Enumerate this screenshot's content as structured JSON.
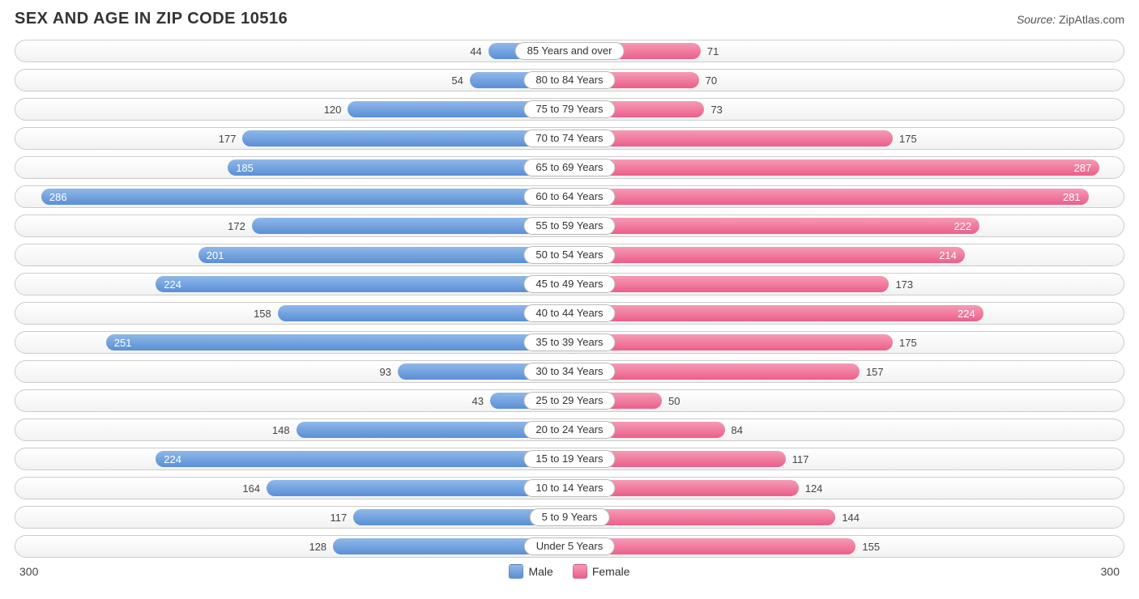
{
  "title": "SEX AND AGE IN ZIP CODE 10516",
  "source_label": "Source:",
  "source_value": "ZipAtlas.com",
  "axis_max": 300,
  "axis_left_label": "300",
  "axis_right_label": "300",
  "colors": {
    "male_light": "#8fb8e8",
    "male_dark": "#5a8fd6",
    "female_light": "#f59ab5",
    "female_dark": "#ec5e8a",
    "row_border": "#cccccc",
    "text": "#333333"
  },
  "legend": {
    "male": "Male",
    "female": "Female"
  },
  "value_label_inside_threshold": 180,
  "rows": [
    {
      "label": "85 Years and over",
      "male": 44,
      "female": 71
    },
    {
      "label": "80 to 84 Years",
      "male": 54,
      "female": 70
    },
    {
      "label": "75 to 79 Years",
      "male": 120,
      "female": 73
    },
    {
      "label": "70 to 74 Years",
      "male": 177,
      "female": 175
    },
    {
      "label": "65 to 69 Years",
      "male": 185,
      "female": 287
    },
    {
      "label": "60 to 64 Years",
      "male": 286,
      "female": 281
    },
    {
      "label": "55 to 59 Years",
      "male": 172,
      "female": 222
    },
    {
      "label": "50 to 54 Years",
      "male": 201,
      "female": 214
    },
    {
      "label": "45 to 49 Years",
      "male": 224,
      "female": 173
    },
    {
      "label": "40 to 44 Years",
      "male": 158,
      "female": 224
    },
    {
      "label": "35 to 39 Years",
      "male": 251,
      "female": 175
    },
    {
      "label": "30 to 34 Years",
      "male": 93,
      "female": 157
    },
    {
      "label": "25 to 29 Years",
      "male": 43,
      "female": 50
    },
    {
      "label": "20 to 24 Years",
      "male": 148,
      "female": 84
    },
    {
      "label": "15 to 19 Years",
      "male": 224,
      "female": 117
    },
    {
      "label": "10 to 14 Years",
      "male": 164,
      "female": 124
    },
    {
      "label": "5 to 9 Years",
      "male": 117,
      "female": 144
    },
    {
      "label": "Under 5 Years",
      "male": 128,
      "female": 155
    }
  ]
}
